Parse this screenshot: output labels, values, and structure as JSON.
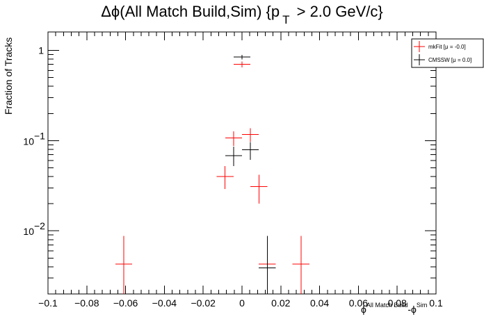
{
  "chart_data": {
    "type": "scatter",
    "title": {
      "main": "Δϕ(All Match Build,Sim) {p",
      "sub": "T",
      "tail": " > 2.0 GeV/c}"
    },
    "ylabel": "Fraction of Tracks",
    "xlabel": {
      "base1": "ϕ",
      "sup1": "All Match Build",
      "base2": "-ϕ",
      "sup2": "Sim"
    },
    "xlim": [
      -0.1,
      0.1
    ],
    "ylim": [
      0.002,
      1.6
    ],
    "yscale": "log",
    "x_tick_labels": [
      "−0.1",
      "−0.08",
      "−0.06",
      "−0.04",
      "−0.02",
      "0",
      "0.02",
      "0.04",
      "0.06",
      "0.08",
      "0.1"
    ],
    "x_tick_values": [
      -0.1,
      -0.08,
      -0.06,
      -0.04,
      -0.02,
      0,
      0.02,
      0.04,
      0.06,
      0.08,
      0.1
    ],
    "y_tick_labels": [
      {
        "value": 1,
        "base": "1",
        "exp": ""
      },
      {
        "value": 0.1,
        "base": "10",
        "exp": "−1"
      },
      {
        "value": 0.01,
        "base": "10",
        "exp": "−2"
      }
    ],
    "bin_half_width": 0.00435,
    "legend": {
      "placement": "top-right",
      "entries": [
        {
          "label": "mkFit  [μ = -0.0]",
          "color": "#ff0000"
        },
        {
          "label": "CMSSW  [μ =  0.0]",
          "color": "#000000"
        }
      ]
    },
    "series": [
      {
        "name": "mkFit  [μ = -0.0]",
        "color": "#ff0000",
        "points": [
          {
            "x": -0.0609,
            "y": 0.0043,
            "ylo": 0.0018,
            "yhi": 0.0088
          },
          {
            "x": -0.0087,
            "y": 0.04,
            "ylo": 0.029,
            "yhi": 0.052
          },
          {
            "x": -0.0043,
            "y": 0.107,
            "ylo": 0.087,
            "yhi": 0.127
          },
          {
            "x": 0.0,
            "y": 0.7,
            "ylo": 0.65,
            "yhi": 0.75
          },
          {
            "x": 0.0043,
            "y": 0.117,
            "ylo": 0.097,
            "yhi": 0.137
          },
          {
            "x": 0.0087,
            "y": 0.031,
            "ylo": 0.02,
            "yhi": 0.042
          },
          {
            "x": 0.013,
            "y": 0.0043,
            "ylo": 0.0018,
            "yhi": 0.0088
          },
          {
            "x": 0.0304,
            "y": 0.0043,
            "ylo": 0.0018,
            "yhi": 0.0088
          }
        ]
      },
      {
        "name": "CMSSW  [μ =  0.0]",
        "color": "#000000",
        "points": [
          {
            "x": -0.0043,
            "y": 0.068,
            "ylo": 0.052,
            "yhi": 0.086
          },
          {
            "x": 0.0,
            "y": 0.845,
            "ylo": 0.795,
            "yhi": 0.895
          },
          {
            "x": 0.0043,
            "y": 0.079,
            "ylo": 0.061,
            "yhi": 0.096
          },
          {
            "x": 0.013,
            "y": 0.0039,
            "ylo": 0.0015,
            "yhi": 0.0088
          }
        ]
      }
    ]
  }
}
